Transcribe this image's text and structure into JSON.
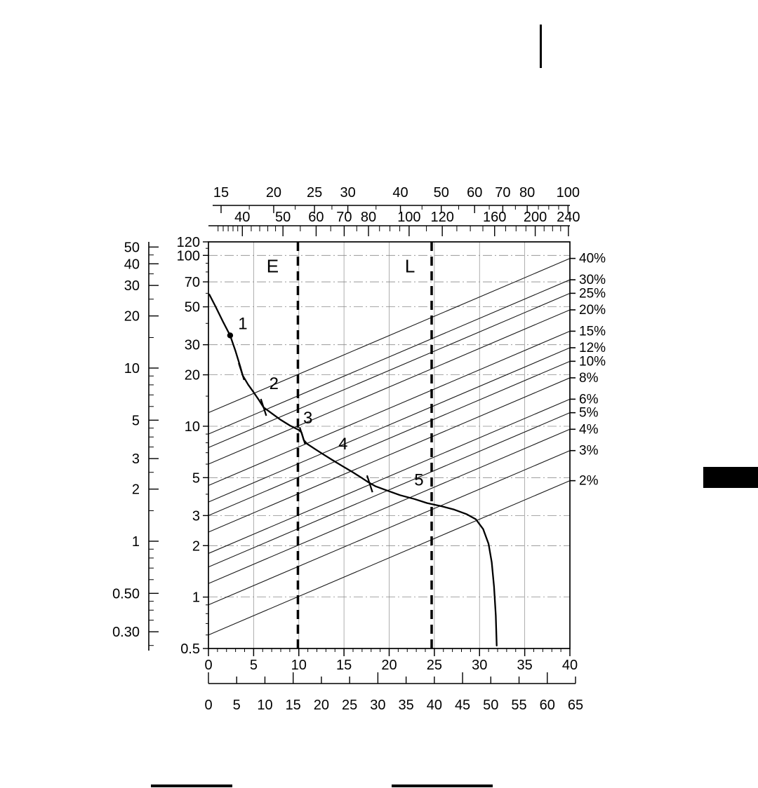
{
  "page": {
    "bg_color": "#ffffff"
  },
  "chart_data": {
    "type": "line",
    "title": "",
    "description": "Tractive effort / gear performance chart with gradient percentage lines, empty (E) and laden (L) reference lines, dual metric-imperial scales",
    "x_axis_inner": {
      "min": 0,
      "max": 40,
      "tick_labels": [
        "0",
        "5",
        "10",
        "15",
        "20",
        "25",
        "30",
        "35",
        "40"
      ],
      "tick_values": [
        0,
        5,
        10,
        15,
        20,
        25,
        30,
        35,
        40
      ],
      "minor_step": 1
    },
    "x_axis_outer": {
      "min": 0,
      "max": 65,
      "tick_labels": [
        "0",
        "5",
        "10",
        "15",
        "20",
        "25",
        "30",
        "35",
        "40",
        "45",
        "50",
        "55",
        "60",
        "65"
      ],
      "tick_values": [
        0,
        5,
        10,
        15,
        20,
        25,
        30,
        35,
        40,
        45,
        50,
        55,
        60,
        65
      ]
    },
    "y_axis_inner": {
      "scale": "log",
      "min": 0.5,
      "max": 120,
      "tick_labels": [
        "120",
        "100",
        "70",
        "50",
        "30",
        "20",
        "10",
        "5",
        "3",
        "2",
        "1",
        "0.5"
      ],
      "tick_values": [
        120,
        100,
        70,
        50,
        30,
        20,
        10,
        5,
        3,
        2,
        1,
        0.5
      ],
      "minor_values": [
        0.6,
        0.7,
        0.8,
        0.9,
        4,
        6,
        7,
        8,
        9,
        15,
        40,
        60,
        80,
        90,
        110
      ]
    },
    "y_axis_outer": {
      "scale": "log",
      "tick_labels": [
        "50",
        "40",
        "30",
        "20",
        "10",
        "5",
        "3",
        "2",
        "1",
        "0.50",
        "0.30"
      ],
      "tick_values": [
        50,
        40,
        30,
        20,
        10,
        5,
        3,
        2,
        1,
        0.5,
        0.3
      ],
      "minor_values": [
        0.25,
        0.35,
        0.4,
        0.45,
        0.6,
        0.7,
        0.8,
        0.9,
        1.5,
        2.5,
        3.5,
        4,
        4.5,
        6,
        7,
        8,
        9,
        15,
        25,
        35,
        45
      ]
    },
    "top_axis_upper": {
      "scale": "log",
      "tick_labels": [
        "15",
        "20",
        "25",
        "30",
        "40",
        "50",
        "60",
        "70",
        "80",
        "100"
      ],
      "tick_values": [
        15,
        20,
        25,
        30,
        40,
        50,
        60,
        70,
        80,
        100
      ],
      "minor_values": [
        17.5,
        22.5,
        27.5,
        35,
        45,
        55,
        65,
        75,
        85,
        90,
        95
      ]
    },
    "top_axis_lower": {
      "scale": "log",
      "tick_labels": [
        "40",
        "50",
        "60",
        "70",
        "80",
        "100",
        "120",
        "160",
        "200",
        "240"
      ],
      "tick_values": [
        40,
        50,
        60,
        70,
        80,
        100,
        120,
        160,
        200,
        240
      ],
      "minor_values": [
        35,
        36,
        37,
        38,
        39,
        42,
        44,
        46,
        48,
        55,
        65,
        75,
        85,
        90,
        95,
        110,
        130,
        140,
        150,
        170,
        180,
        190,
        210,
        220,
        230
      ]
    },
    "grade_lines": {
      "span_ratio": 8,
      "series": [
        {
          "label": "40%",
          "right_value": 96
        },
        {
          "label": "30%",
          "right_value": 72
        },
        {
          "label": "25%",
          "right_value": 60
        },
        {
          "label": "20%",
          "right_value": 48
        },
        {
          "label": "15%",
          "right_value": 36
        },
        {
          "label": "12%",
          "right_value": 28.8
        },
        {
          "label": "10%",
          "right_value": 24
        },
        {
          "label": "8%",
          "right_value": 19.2
        },
        {
          "label": "6%",
          "right_value": 14.4
        },
        {
          "label": "5%",
          "right_value": 12
        },
        {
          "label": "4%",
          "right_value": 9.6
        },
        {
          "label": "3%",
          "right_value": 7.2
        },
        {
          "label": "2%",
          "right_value": 4.8
        }
      ]
    },
    "reference_lines": [
      {
        "label": "E",
        "line_x": 9.9,
        "label_x": 7.1,
        "label_value": 86
      },
      {
        "label": "L",
        "line_x": 24.7,
        "label_x": 22.3,
        "label_value": 86
      }
    ],
    "curve": {
      "points": [
        [
          0.1,
          59
        ],
        [
          0.8,
          50
        ],
        [
          1.6,
          41
        ],
        [
          2.4,
          34
        ],
        [
          3.0,
          27.5
        ],
        [
          3.5,
          22.5
        ],
        [
          3.8,
          19.8
        ],
        [
          4.4,
          17.5
        ],
        [
          5.0,
          15.8
        ],
        [
          5.6,
          14.2
        ],
        [
          6.1,
          12.9
        ],
        [
          7.0,
          11.9
        ],
        [
          8.0,
          10.9
        ],
        [
          9.0,
          10.1
        ],
        [
          10.0,
          9.5
        ],
        [
          10.3,
          9.2
        ],
        [
          10.55,
          8.3
        ],
        [
          10.9,
          7.9
        ],
        [
          11.8,
          7.35
        ],
        [
          12.8,
          6.8
        ],
        [
          13.8,
          6.3
        ],
        [
          14.8,
          5.85
        ],
        [
          15.8,
          5.45
        ],
        [
          16.8,
          5.05
        ],
        [
          17.7,
          4.7
        ],
        [
          18.5,
          4.45
        ],
        [
          19.8,
          4.2
        ],
        [
          21.2,
          3.95
        ],
        [
          22.8,
          3.75
        ],
        [
          24.2,
          3.55
        ],
        [
          25.8,
          3.4
        ],
        [
          27.2,
          3.25
        ],
        [
          28.6,
          3.05
        ],
        [
          29.6,
          2.85
        ],
        [
          30.4,
          2.5
        ],
        [
          31.0,
          2.05
        ],
        [
          31.35,
          1.6
        ],
        [
          31.6,
          1.15
        ],
        [
          31.8,
          0.78
        ],
        [
          31.9,
          0.52
        ]
      ]
    },
    "curve_labels": [
      {
        "text": "1",
        "x": 3.8,
        "v": 40
      },
      {
        "text": "2",
        "x": 7.25,
        "v": 17.8
      },
      {
        "text": "3",
        "x": 11.0,
        "v": 11.2
      },
      {
        "text": "4",
        "x": 14.9,
        "v": 7.9
      },
      {
        "text": "5",
        "x": 23.3,
        "v": 4.85
      }
    ],
    "transition_marks": [
      {
        "x": 3.65,
        "v": 20.9
      },
      {
        "x": 6.1,
        "v": 12.9
      },
      {
        "x": 10.4,
        "v": 8.8
      },
      {
        "x": 17.85,
        "v": 4.6
      }
    ],
    "dot_marker": {
      "x": 2.4,
      "v": 34
    },
    "grid": {
      "vertical_values": [
        5,
        10,
        15,
        20,
        25,
        30,
        35
      ],
      "horizontal_values": [
        1,
        2,
        3,
        5,
        10,
        20,
        30,
        50,
        70,
        100
      ]
    }
  }
}
